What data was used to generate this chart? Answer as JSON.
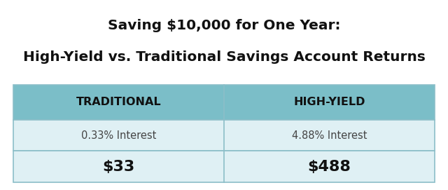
{
  "title_line1": "Saving $10,000 for One Year:",
  "title_line2": "High-Yield vs. Traditional Savings Account Returns",
  "col1_header": "TRADITIONAL",
  "col2_header": "HIGH-YIELD",
  "col1_interest": "0.33% Interest",
  "col2_interest": "4.88% Interest",
  "col1_value": "$33",
  "col2_value": "$488",
  "header_bg": "#7bbec8",
  "row_bg": "#dff0f4",
  "table_border": "#8bbec8",
  "bg_color": "#ffffff",
  "title_color": "#111111",
  "header_text_color": "#111111",
  "cell_text_color": "#444444",
  "value_text_color": "#111111",
  "fig_w": 6.4,
  "fig_h": 2.71,
  "dpi": 100
}
